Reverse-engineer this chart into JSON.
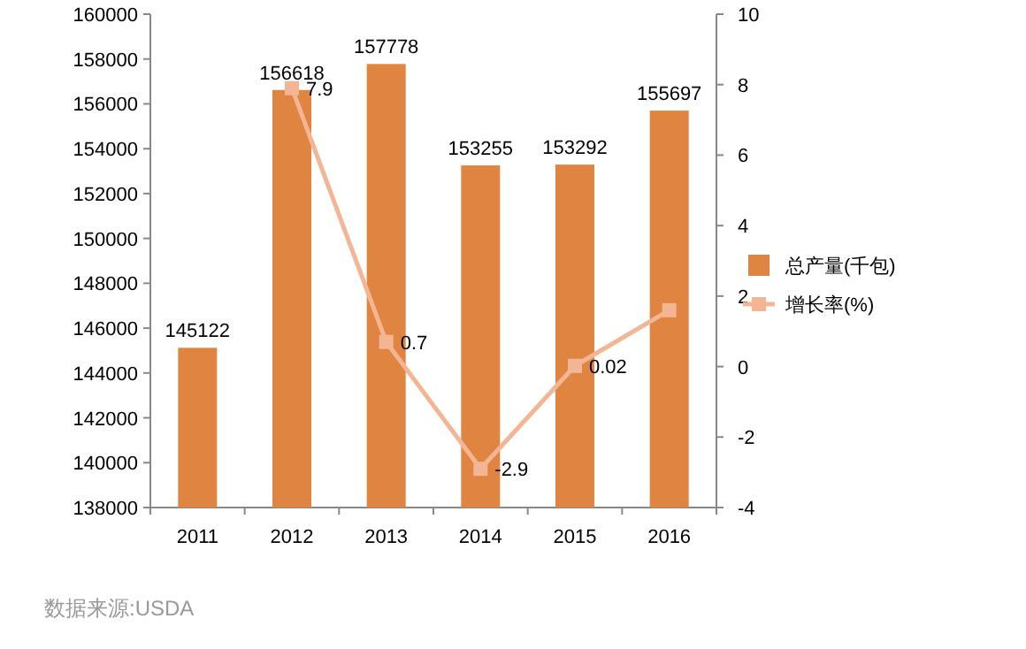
{
  "chart_data": {
    "type": "bar",
    "categories": [
      "2011",
      "2012",
      "2013",
      "2014",
      "2015",
      "2016"
    ],
    "series": [
      {
        "name": "总产量(千包)",
        "color": "#e08541",
        "values": [
          145122,
          156618,
          157778,
          153255,
          153292,
          155697
        ],
        "value_labels": [
          "145122",
          "156618",
          "157778",
          "153255",
          "153292",
          "155697"
        ]
      },
      {
        "name": "增长率(%)",
        "type": "line",
        "axis": "y2",
        "color": "#f4b595",
        "marker": "square",
        "values": [
          null,
          7.9,
          0.7,
          -2.9,
          0.02,
          1.6
        ],
        "value_labels": [
          null,
          "7.9",
          "0.7",
          "-2.9",
          "0.02",
          null
        ]
      }
    ],
    "ylim": [
      138000,
      160000
    ],
    "yticks": [
      138000,
      140000,
      142000,
      144000,
      146000,
      148000,
      150000,
      152000,
      154000,
      156000,
      158000,
      160000
    ],
    "y2lim": [
      -4,
      10
    ],
    "y2ticks": [
      -4,
      -2,
      0,
      2,
      4,
      6,
      8,
      10
    ],
    "grid": false,
    "legend": "right",
    "annotations": [
      "数据来源:USDA"
    ]
  }
}
